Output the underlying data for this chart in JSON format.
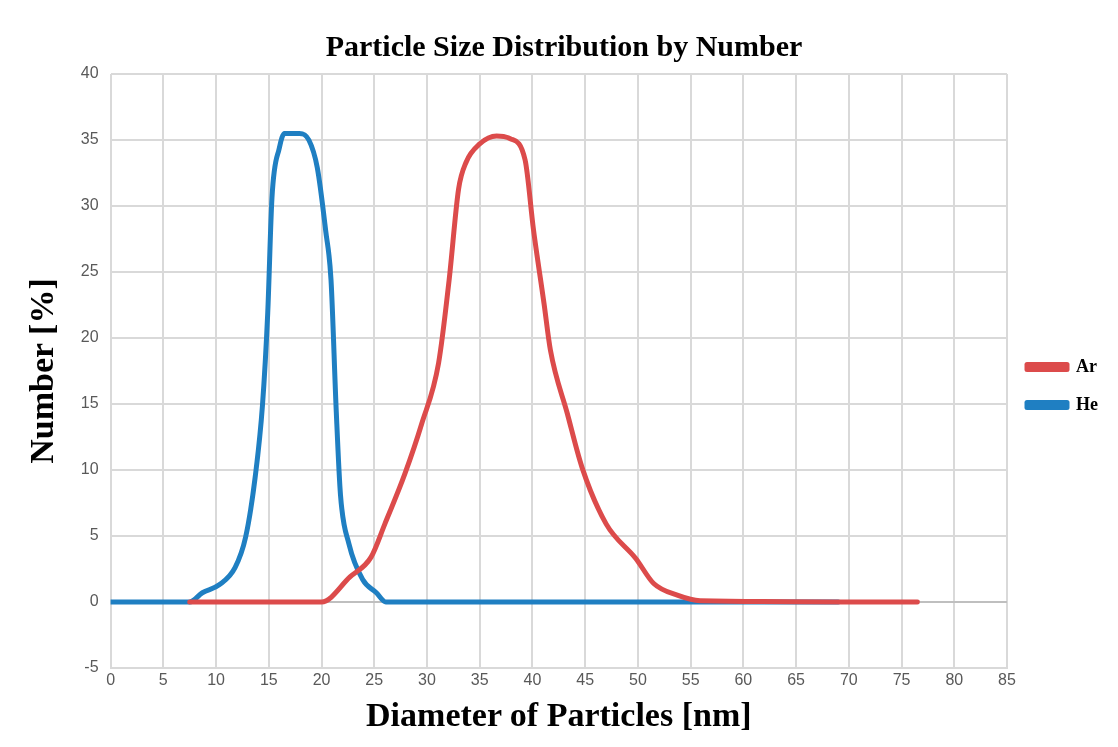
{
  "chart_data": {
    "type": "line",
    "title": "Particle Size Distribution by Number",
    "xlabel": "Diameter of Particles [nm]",
    "ylabel": "Number [%]",
    "xlim": [
      0,
      85
    ],
    "xticks": [
      0,
      5,
      10,
      15,
      20,
      25,
      30,
      35,
      40,
      45,
      50,
      55,
      60,
      65,
      70,
      75,
      80,
      85
    ],
    "ylim": [
      -5,
      40
    ],
    "yticks": [
      -5,
      0,
      5,
      10,
      15,
      20,
      25,
      30,
      35,
      40
    ],
    "grid": true,
    "legend": "right",
    "marker": "none",
    "line_style": "solid",
    "series": [
      {
        "name": "Ar",
        "color": "#dc4b4b",
        "x": [
          7.5,
          20.0,
          22.7,
          24.7,
          26.0,
          27.9,
          29.5,
          31.1,
          32.1,
          33.0,
          33.7,
          35.0,
          36.6,
          37.9,
          39.3,
          40.1,
          41.1,
          41.7,
          43.3,
          44.7,
          47.0,
          49.8,
          51.5,
          53.8,
          55.9,
          76.5
        ],
        "values": [
          0,
          0,
          1.9,
          3.4,
          5.9,
          9.7,
          13.5,
          18.1,
          24.4,
          31.3,
          33.3,
          34.7,
          35.3,
          35.1,
          33.5,
          28.2,
          22.6,
          19.1,
          14.3,
          10.2,
          5.9,
          3.3,
          1.4,
          0.5,
          0.1,
          0
        ]
      },
      {
        "name": "He",
        "color": "#1f7fc2",
        "x": [
          0,
          7.5,
          8.7,
          10.3,
          11.8,
          12.8,
          13.7,
          14.4,
          14.9,
          15.3,
          16.0,
          16.5,
          17.9,
          18.8,
          19.6,
          20.4,
          20.9,
          21.4,
          21.8,
          22.6,
          23.9,
          25.2,
          26.1,
          69.0
        ],
        "values": [
          0,
          0,
          0.7,
          1.3,
          2.6,
          4.9,
          9.4,
          14.9,
          21.9,
          30.6,
          34.4,
          35.5,
          35.5,
          35.0,
          32.9,
          28.1,
          24.4,
          14.4,
          8.1,
          4.4,
          1.7,
          0.7,
          0,
          0
        ]
      }
    ]
  }
}
